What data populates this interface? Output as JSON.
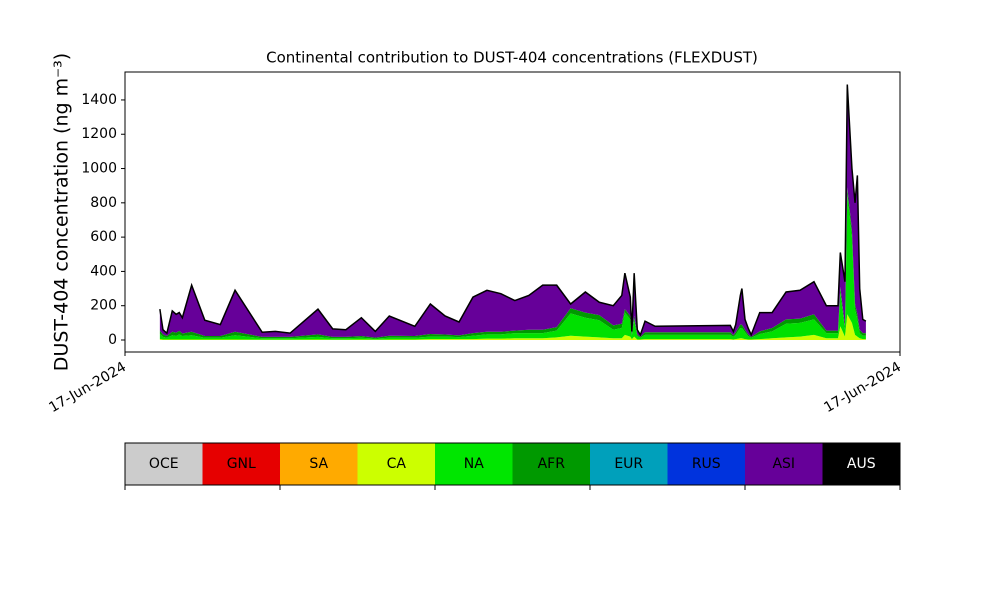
{
  "chart_data": {
    "type": "stacked_area",
    "title": "Continental contribution to DUST-404 concentrations (FLEXDUST)",
    "ylabel": "DUST-404 concentration (ng m⁻³)",
    "xlim": [
      0,
      100
    ],
    "ylim": [
      -70,
      1563
    ],
    "xticks": [
      {
        "value": 0,
        "label": "17-Jun-2024"
      },
      {
        "value": 100,
        "label": "17-Jun-2024"
      }
    ],
    "yticks": [
      0,
      200,
      400,
      600,
      800,
      1000,
      1200,
      1400
    ],
    "x": [
      4.5,
      4.9,
      5.4,
      6.1,
      6.6,
      7.0,
      7.4,
      8.6,
      10.3,
      12.3,
      14.2,
      17.7,
      19.4,
      21.3,
      24.9,
      26.8,
      28.5,
      30.5,
      32.3,
      34.1,
      37.4,
      39.4,
      41.3,
      43.1,
      44.9,
      46.7,
      48.5,
      50.3,
      52.1,
      53.9,
      55.7,
      57.5,
      59.4,
      61.2,
      63.0,
      64.1,
      64.5,
      65.2,
      65.4,
      65.7,
      66.1,
      66.5,
      67.1,
      68.4,
      78.1,
      78.5,
      78.8,
      79.4,
      79.6,
      80.0,
      80.4,
      80.8,
      81.9,
      83.5,
      85.3,
      87.1,
      88.9,
      90.5,
      92.0,
      92.3,
      92.9,
      93.2,
      93.8,
      94.2,
      94.5,
      94.8,
      95.2,
      95.6
    ],
    "series": [
      {
        "name": "CA",
        "color": "#ccff00",
        "values": [
          5,
          3,
          3,
          3,
          3,
          3,
          3,
          3,
          3,
          3,
          3,
          2,
          2,
          2,
          3,
          2,
          2,
          3,
          2,
          3,
          3,
          5,
          5,
          5,
          5,
          8,
          8,
          10,
          10,
          10,
          15,
          25,
          20,
          15,
          10,
          10,
          30,
          20,
          5,
          20,
          3,
          3,
          5,
          5,
          5,
          3,
          5,
          10,
          10,
          5,
          3,
          3,
          5,
          10,
          15,
          20,
          30,
          10,
          10,
          80,
          20,
          150,
          100,
          30,
          20,
          10,
          5,
          5
        ]
      },
      {
        "name": "NA",
        "color": "#00e000",
        "values": [
          30,
          15,
          10,
          25,
          20,
          30,
          20,
          25,
          10,
          10,
          25,
          8,
          8,
          8,
          15,
          8,
          8,
          10,
          6,
          10,
          10,
          15,
          15,
          12,
          20,
          25,
          25,
          30,
          30,
          30,
          40,
          130,
          110,
          100,
          50,
          60,
          130,
          100,
          20,
          100,
          20,
          10,
          25,
          25,
          25,
          15,
          25,
          60,
          60,
          40,
          20,
          10,
          30,
          40,
          80,
          80,
          90,
          30,
          30,
          200,
          40,
          700,
          500,
          150,
          100,
          30,
          20,
          20
        ]
      },
      {
        "name": "AFR",
        "color": "#009900",
        "values": [
          20,
          15,
          10,
          20,
          20,
          20,
          15,
          20,
          10,
          10,
          20,
          8,
          8,
          8,
          15,
          8,
          8,
          10,
          6,
          12,
          10,
          15,
          12,
          10,
          15,
          15,
          15,
          15,
          20,
          20,
          20,
          30,
          30,
          30,
          25,
          25,
          20,
          20,
          10,
          20,
          10,
          5,
          15,
          15,
          15,
          10,
          15,
          20,
          20,
          15,
          10,
          5,
          15,
          20,
          25,
          25,
          30,
          15,
          15,
          30,
          20,
          40,
          40,
          30,
          30,
          20,
          15,
          15
        ]
      },
      {
        "name": "ASI",
        "color": "#660099",
        "values": [
          125,
          27,
          17,
          122,
          107,
          107,
          92,
          272,
          92,
          67,
          242,
          27,
          32,
          22,
          147,
          47,
          42,
          107,
          36,
          115,
          57,
          175,
          108,
          78,
          210,
          242,
          222,
          175,
          200,
          260,
          245,
          25,
          120,
          75,
          115,
          165,
          210,
          110,
          15,
          250,
          27,
          12,
          65,
          35,
          40,
          22,
          45,
          170,
          210,
          60,
          37,
          12,
          110,
          90,
          160,
          165,
          190,
          145,
          145,
          200,
          260,
          600,
          360,
          590,
          810,
          240,
          80,
          70
        ]
      }
    ],
    "colorbar": {
      "labels": [
        "OCE",
        "GNL",
        "SA",
        "CA",
        "NA",
        "AFR",
        "EUR",
        "RUS",
        "ASI",
        "AUS"
      ],
      "colors": [
        "#cccccc",
        "#e60000",
        "#ffaa00",
        "#ccff00",
        "#00e600",
        "#009900",
        "#00a0bb",
        "#0033dd",
        "#660099",
        "#000000"
      ]
    }
  }
}
